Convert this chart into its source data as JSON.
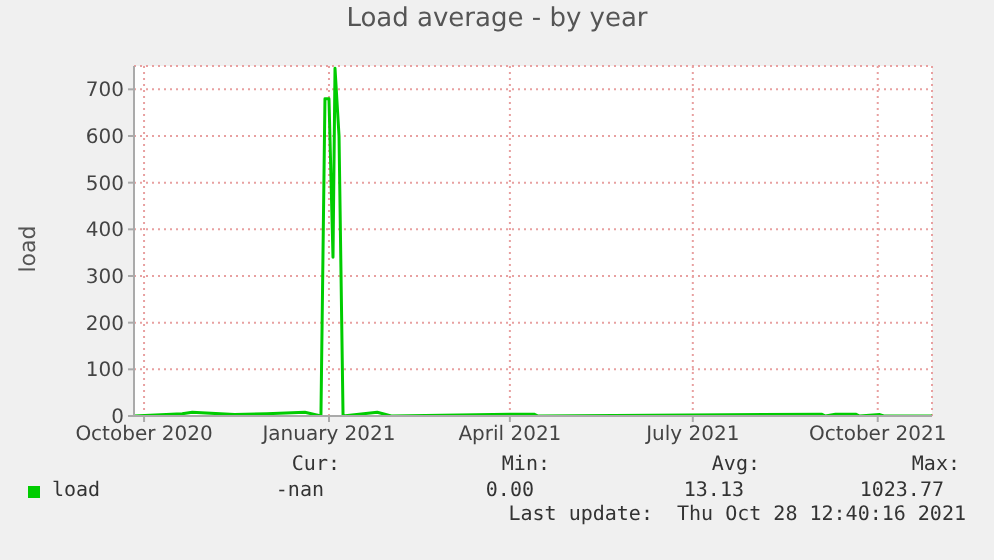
{
  "chart_data": {
    "type": "line",
    "title": "Load average - by year",
    "ylabel": "load",
    "x": [
      "2020-09-26",
      "2020-10-20",
      "2020-10-25",
      "2020-11-15",
      "2020-12-01",
      "2020-12-20",
      "2020-12-28",
      "2020-12-30",
      "2021-01-01",
      "2021-01-03",
      "2021-01-04",
      "2021-01-06",
      "2021-01-08",
      "2021-01-25",
      "2021-02-01",
      "2021-04-05",
      "2021-04-13",
      "2021-04-15",
      "2021-09-03",
      "2021-09-05",
      "2021-09-10",
      "2021-09-20",
      "2021-09-22",
      "2021-10-02",
      "2021-10-04",
      "2021-10-28"
    ],
    "series": [
      {
        "name": "load",
        "color": "#00cc00",
        "values": [
          0,
          5,
          8,
          3,
          5,
          8,
          0,
          680,
          680,
          340,
          745,
          600,
          0,
          8,
          0,
          4,
          4,
          0,
          4,
          0,
          4,
          4,
          0,
          3,
          0,
          0
        ]
      }
    ],
    "xlim": [
      "2020-09-26",
      "2021-10-28"
    ],
    "xticks": [
      {
        "value": "2020-10-01",
        "label": "October 2020"
      },
      {
        "value": "2021-01-01",
        "label": "January 2021"
      },
      {
        "value": "2021-04-01",
        "label": "April 2021"
      },
      {
        "value": "2021-07-01",
        "label": "July 2021"
      },
      {
        "value": "2021-10-01",
        "label": "October 2021"
      }
    ],
    "ylim": [
      0,
      750
    ],
    "yticks": [
      0,
      100,
      200,
      300,
      400,
      500,
      600,
      700
    ],
    "grid": true,
    "legend": "bottom left",
    "marker": "none",
    "line_style": "solid",
    "annotations": [
      "Cur:",
      "Min:",
      "Avg:",
      "Max:",
      "-nan",
      "0.00",
      "13.13",
      "1023.77",
      "Last update:  Thu Oct 28 12:40:16 2021"
    ]
  }
}
